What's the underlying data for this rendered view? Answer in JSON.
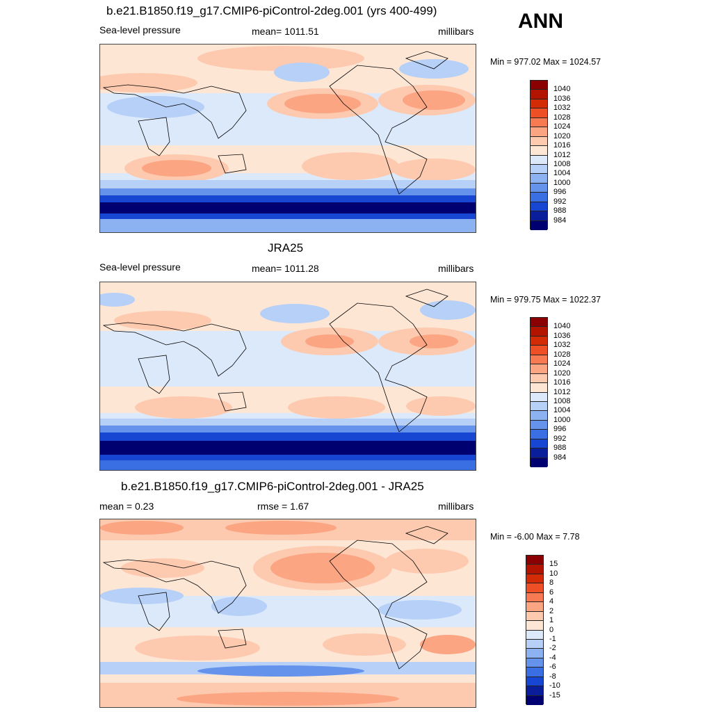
{
  "season": "ANN",
  "panels": [
    {
      "id": "model",
      "title": "b.e21.B1850.f19_g17.CMIP6-piControl-2deg.001 (yrs 400-499)",
      "left_label": "Sea-level pressure",
      "center_label": "mean= 1011.51",
      "right_label": "millibars",
      "minmax": "Min = 977.02 Max = 1024.57",
      "map_name": "model-slp-map"
    },
    {
      "id": "obs",
      "title": "JRA25",
      "left_label": "Sea-level pressure",
      "center_label": "mean= 1011.28",
      "right_label": "millibars",
      "minmax": "Min = 979.75 Max = 1022.37",
      "map_name": "obs-slp-map"
    },
    {
      "id": "diff",
      "title": "b.e21.B1850.f19_g17.CMIP6-piControl-2deg.001 - JRA25",
      "left_label": "mean =   0.23",
      "center_label": "rmse =   1.67",
      "right_label": "millibars",
      "minmax": "Min =  -6.00 Max =   7.78",
      "map_name": "diff-slp-map"
    }
  ],
  "colorbars": {
    "slp": {
      "labels": [
        "1040",
        "1036",
        "1032",
        "1028",
        "1024",
        "1020",
        "1016",
        "1012",
        "1008",
        "1004",
        "1000",
        "996",
        "992",
        "988",
        "984"
      ],
      "colors": [
        "#8b0000",
        "#b31400",
        "#d32b06",
        "#ee4f24",
        "#f77a52",
        "#fba583",
        "#fdcab0",
        "#fee6d5",
        "#dce9fb",
        "#b6d0f7",
        "#8cb2f2",
        "#6593ec",
        "#3a6fe4",
        "#1646d2",
        "#0a1e9c",
        "#000070"
      ]
    },
    "diff": {
      "labels": [
        "15",
        "10",
        "8",
        "6",
        "4",
        "2",
        "1",
        "0",
        "-1",
        "-2",
        "-4",
        "-6",
        "-8",
        "-10",
        "-15"
      ],
      "colors": [
        "#8b0000",
        "#b31400",
        "#d32b06",
        "#ee4f24",
        "#f77a52",
        "#fba583",
        "#fdcab0",
        "#fee6d5",
        "#dce9fb",
        "#b6d0f7",
        "#8cb2f2",
        "#6593ec",
        "#3a6fe4",
        "#1646d2",
        "#0a1e9c",
        "#000070"
      ]
    }
  }
}
